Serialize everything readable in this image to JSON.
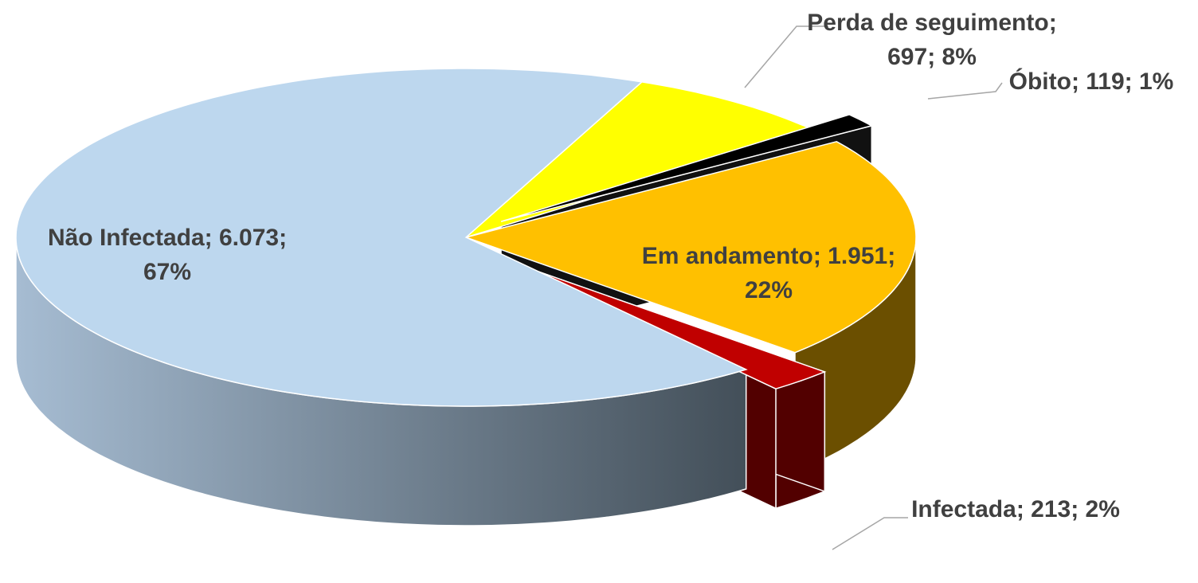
{
  "chart_data": {
    "type": "pie3d",
    "categories": [
      "Perda de seguimento",
      "Óbito",
      "Em andamento",
      "Infectada",
      "Não Infectada"
    ],
    "values": [
      697,
      119,
      1951,
      213,
      6073
    ],
    "value_labels": [
      "697",
      "119",
      "1.951",
      "213",
      "6.073"
    ],
    "percentages": [
      8,
      1,
      22,
      2,
      67
    ],
    "percentage_labels": [
      "8%",
      "1%",
      "22%",
      "2%",
      "67%"
    ],
    "separator": "; ",
    "colors": [
      "#ffff00",
      "#000000",
      "#ffc000",
      "#c00000",
      "#bdd7ee"
    ],
    "exploded": [
      false,
      true,
      false,
      true,
      false
    ]
  }
}
